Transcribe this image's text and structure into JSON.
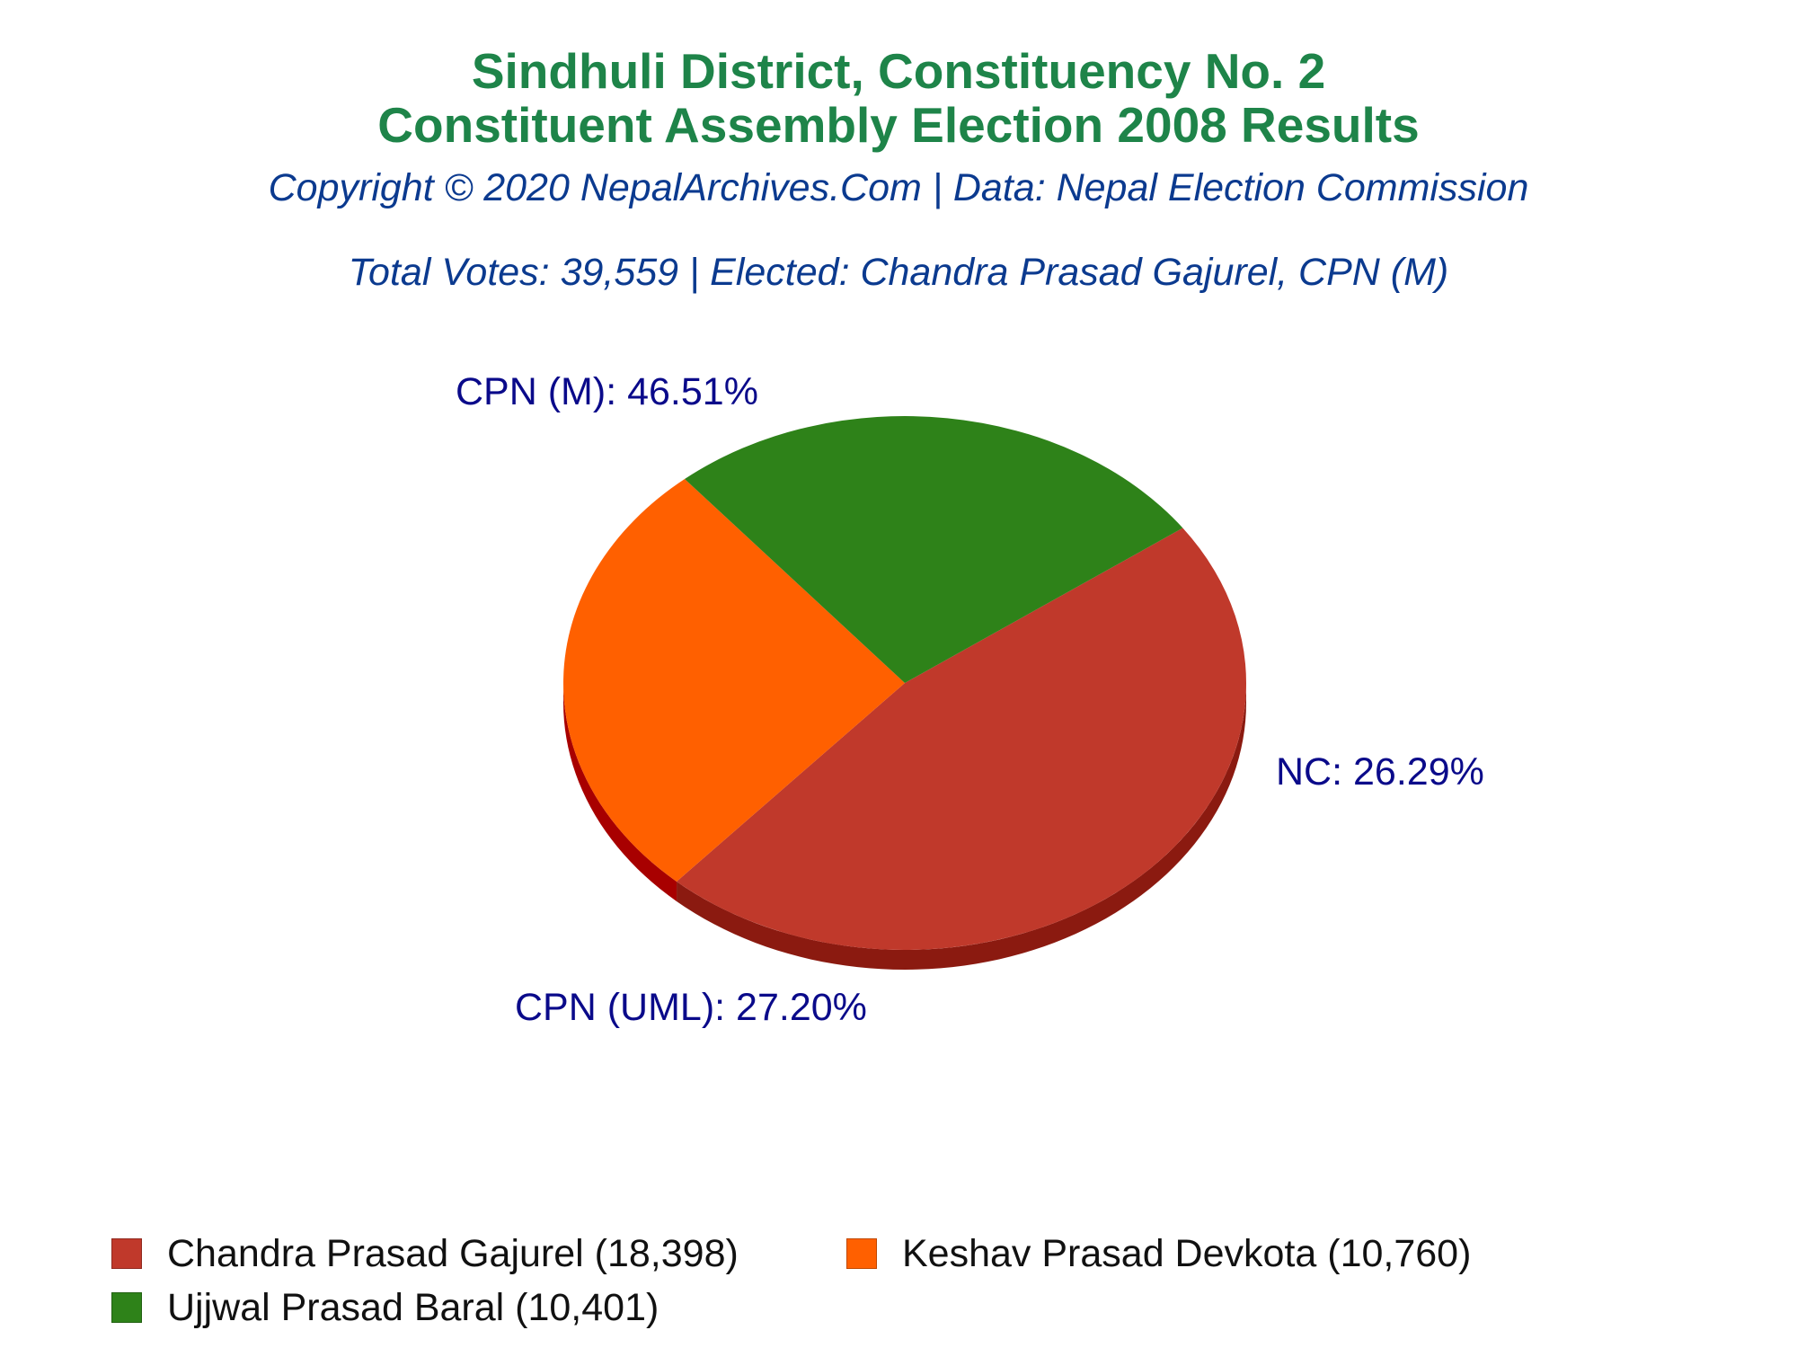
{
  "header": {
    "title_line_1": "Sindhuli District, Constituency No. 2",
    "title_line_2": "Constituent Assembly Election 2008 Results",
    "copyright": "Copyright © 2020 NepalArchives.Com | Data: Nepal Election Commission",
    "summary": "Total Votes: 39,559 | Elected: Chandra Prasad Gajurel, CPN (M)"
  },
  "colors": {
    "title": "#1e8449",
    "subtitle": "#0b3a8f",
    "slice_label": "#0a0a8a"
  },
  "chart_data": {
    "type": "pie",
    "style": "3d",
    "total_votes": 39559,
    "slices": [
      {
        "party": "CPN (M)",
        "label": "CPN (M): 46.51%",
        "percent": 46.51,
        "candidate": "Chandra Prasad Gajurel",
        "votes": 18398,
        "legend": "Chandra Prasad Gajurel (18,398)",
        "color": "#c0392b",
        "side_color": "#8b1a10"
      },
      {
        "party": "CPN (UML)",
        "label": "CPN (UML): 27.20%",
        "percent": 27.2,
        "candidate": "Keshav Prasad Devkota",
        "votes": 10760,
        "legend": "Keshav Prasad Devkota (10,760)",
        "color": "#ff6000",
        "side_color": "#a80000"
      },
      {
        "party": "NC",
        "label": "NC: 26.29%",
        "percent": 26.29,
        "candidate": "Ujjwal Prasad Baral",
        "votes": 10401,
        "legend": "Ujjwal Prasad Baral (10,401)",
        "color": "#2e8219",
        "side_color": "#0d3008"
      }
    ],
    "legend_placement": "bottom"
  }
}
